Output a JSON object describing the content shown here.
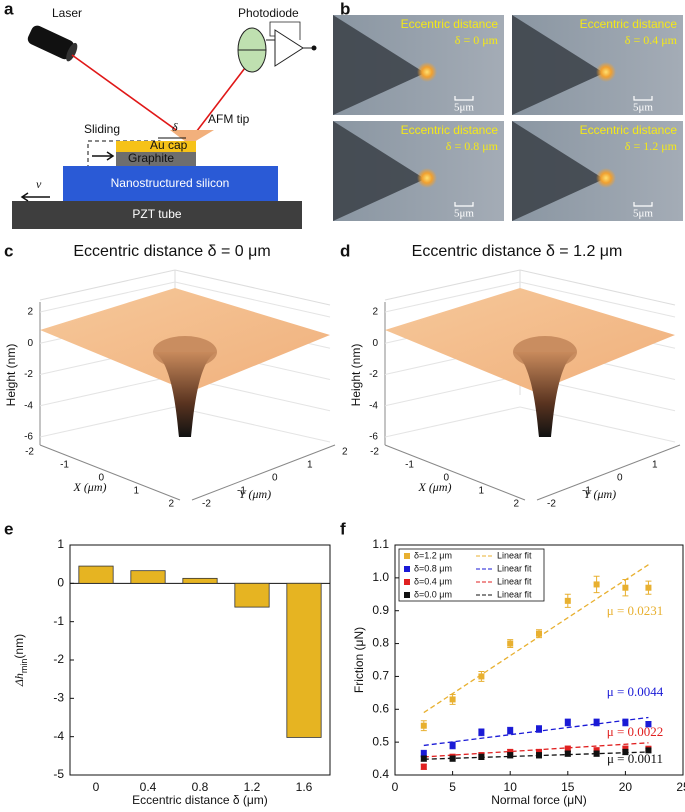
{
  "panel_labels": [
    "a",
    "b",
    "c",
    "d",
    "e",
    "f"
  ],
  "schematic": {
    "laser": "Laser",
    "photodiode": "Photodiode",
    "tip": "AFM tip",
    "sliding": "Sliding",
    "delta": "δ",
    "cap": "Au cap",
    "graphite": "Graphite",
    "silicon": "Nanostructured silicon",
    "pzt": "PZT tube",
    "velocity": "v"
  },
  "micrographs": [
    {
      "label": "Eccentric distance",
      "delta": "δ = 0 μm",
      "scale": "5μm"
    },
    {
      "label": "Eccentric distance",
      "delta": "δ = 0.4 μm",
      "scale": "5μm"
    },
    {
      "label": "Eccentric distance",
      "delta": "δ = 0.8 μm",
      "scale": "5μm"
    },
    {
      "label": "Eccentric distance",
      "delta": "δ = 1.2 μm",
      "scale": "5μm"
    }
  ],
  "surfaces": {
    "zlabel": "Height (nm)",
    "xlabel": "X (μm)",
    "ylabel": "Y (μm)",
    "zticks": [
      2,
      0,
      -2,
      -4,
      -6
    ],
    "xticks": [
      -2,
      -1,
      0,
      1,
      2
    ],
    "yticks": [
      2,
      1,
      0,
      -1,
      -2
    ],
    "panels": [
      {
        "title": "Eccentric distance δ = 0 μm"
      },
      {
        "title": "Eccentric distance δ = 1.2 μm"
      }
    ]
  },
  "chart_data": [
    {
      "type": "bar",
      "categories": [
        "0",
        "0.4",
        "0.8",
        "1.2",
        "1.6"
      ],
      "values": [
        0.45,
        0.33,
        0.13,
        -0.62,
        -4.02
      ],
      "color": "#e6b422",
      "ylim": [
        -5,
        1
      ],
      "yticks": [
        -5,
        -4,
        -3,
        -2,
        -1,
        0,
        1
      ],
      "ylabel": {
        "main": "Δh",
        "sub": "min",
        "unit": "(nm)"
      },
      "xlabel": "Eccentric distance δ (μm)"
    },
    {
      "type": "scatter",
      "xlabel": "Normal force (μN)",
      "ylabel": "Friction (μN)",
      "xlim": [
        0,
        25
      ],
      "xticks": [
        0,
        5,
        10,
        15,
        20,
        25
      ],
      "ylim": [
        0.4,
        1.1
      ],
      "yticks": [
        0.4,
        0.5,
        0.6,
        0.7,
        0.8,
        0.9,
        {
          "value": 1,
          "label": "1.0"
        },
        1.1
      ],
      "legend": "upper left",
      "x": [
        2.5,
        5,
        7.5,
        10,
        12.5,
        15,
        17.5,
        20,
        22
      ],
      "series": [
        {
          "name": "δ=1.2 μm",
          "color": "#e8b030",
          "values": [
            0.55,
            0.63,
            0.7,
            0.8,
            0.83,
            0.93,
            0.98,
            0.97,
            0.97
          ],
          "errors": [
            0.015,
            0.015,
            0.015,
            0.012,
            0.012,
            0.02,
            0.025,
            0.025,
            0.02
          ],
          "fit_name": "Linear fit",
          "fit": {
            "x": [
              2.5,
              22
            ],
            "values": [
              0.59,
              1.04
            ]
          },
          "annotation": "μ = 0.0231"
        },
        {
          "name": "δ=0.8 μm",
          "color": "#1a1ad6",
          "values": [
            0.465,
            0.49,
            0.53,
            0.535,
            0.54,
            0.56,
            0.56,
            0.56,
            0.555
          ],
          "errors": [
            0.01,
            0.01,
            0.01,
            0.01,
            0.01,
            0.01,
            0.01,
            0.01,
            0.008
          ],
          "fit_name": "Linear fit",
          "fit": {
            "x": [
              2.5,
              22
            ],
            "values": [
              0.49,
              0.575
            ]
          },
          "annotation": "μ = 0.0044"
        },
        {
          "name": "δ=0.4 μm",
          "color": "#e02020",
          "values": [
            0.425,
            0.455,
            0.46,
            0.47,
            0.47,
            0.48,
            0.475,
            0.48,
            0.48
          ],
          "errors": [
            0.008,
            0.008,
            0.008,
            0.008,
            0.008,
            0.008,
            0.008,
            0.008,
            0.006
          ],
          "fit_name": "Linear fit",
          "fit": {
            "x": [
              2.5,
              22
            ],
            "values": [
              0.455,
              0.498
            ]
          },
          "annotation": "μ = 0.0022"
        },
        {
          "name": "δ=0.0 μm",
          "color": "#111111",
          "values": [
            0.45,
            0.45,
            0.455,
            0.46,
            0.46,
            0.465,
            0.465,
            0.47,
            0.475
          ],
          "errors": [
            0.008,
            0.008,
            0.008,
            0.008,
            0.008,
            0.008,
            0.008,
            0.008,
            0.006
          ],
          "fit_name": "Linear fit",
          "fit": {
            "x": [
              2.5,
              22
            ],
            "values": [
              0.448,
              0.47
            ]
          },
          "annotation": "μ = 0.0011"
        }
      ]
    }
  ]
}
